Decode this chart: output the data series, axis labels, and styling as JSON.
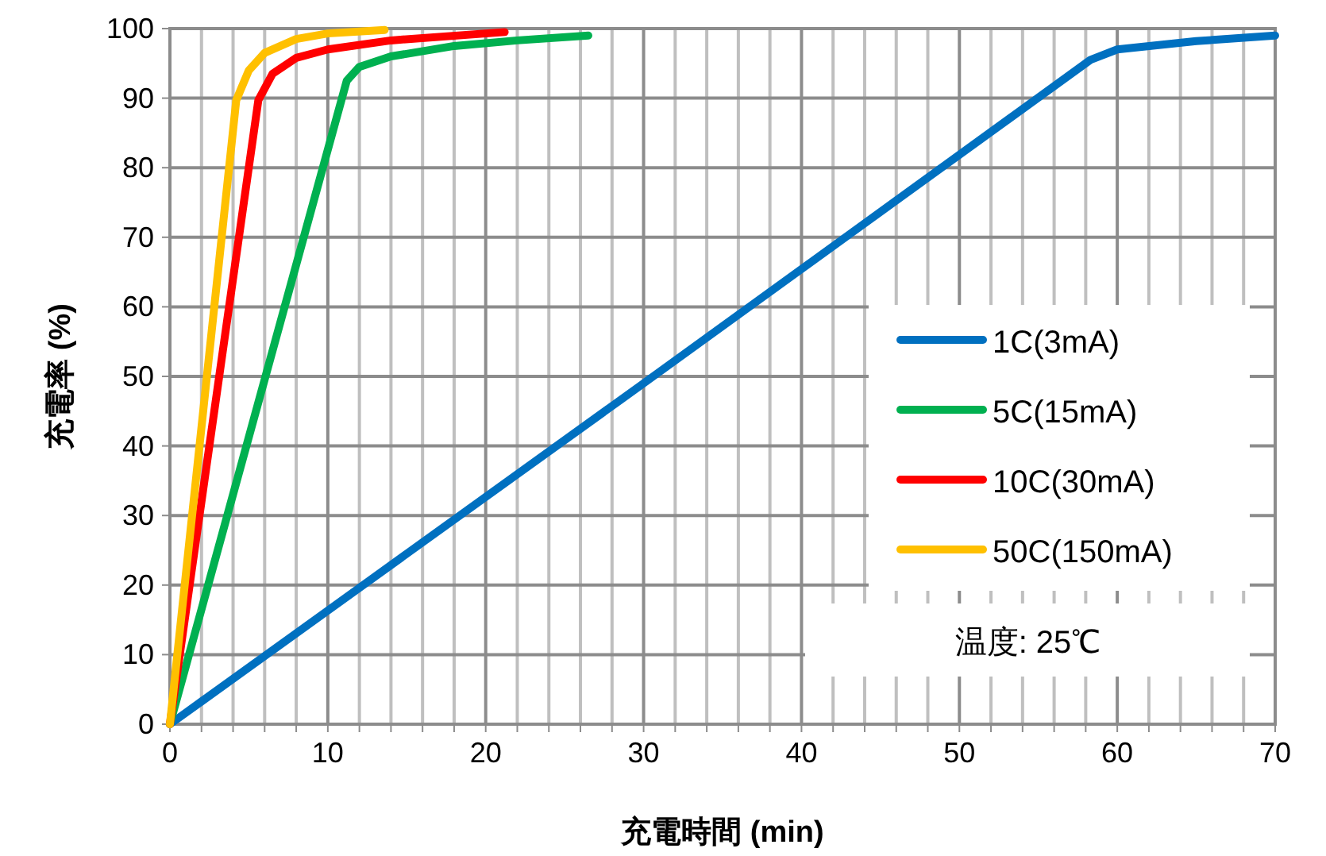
{
  "chart_data": {
    "type": "line",
    "xlabel": "充電時間 (min)",
    "ylabel": "充電率 (%)",
    "xlim": [
      0,
      70
    ],
    "ylim": [
      0,
      100
    ],
    "xticks": [
      0,
      {
        "value": 2,
        "label": null
      },
      {
        "value": 4,
        "label": null
      },
      {
        "value": 6,
        "label": null
      },
      {
        "value": 8,
        "label": null
      },
      10,
      {
        "value": 12,
        "label": null
      },
      {
        "value": 14,
        "label": null
      },
      {
        "value": 16,
        "label": null
      },
      {
        "value": 18,
        "label": null
      },
      20,
      {
        "value": 22,
        "label": null
      },
      {
        "value": 24,
        "label": null
      },
      {
        "value": 26,
        "label": null
      },
      {
        "value": 28,
        "label": null
      },
      30,
      {
        "value": 32,
        "label": null
      },
      {
        "value": 34,
        "label": null
      },
      {
        "value": 36,
        "label": null
      },
      {
        "value": 38,
        "label": null
      },
      40,
      {
        "value": 42,
        "label": null
      },
      {
        "value": 44,
        "label": null
      },
      {
        "value": 46,
        "label": null
      },
      {
        "value": 48,
        "label": null
      },
      50,
      {
        "value": 52,
        "label": null
      },
      {
        "value": 54,
        "label": null
      },
      {
        "value": 56,
        "label": null
      },
      {
        "value": 58,
        "label": null
      },
      60,
      {
        "value": 62,
        "label": null
      },
      {
        "value": 64,
        "label": null
      },
      {
        "value": 66,
        "label": null
      },
      {
        "value": 68,
        "label": null
      },
      70
    ],
    "yticks": [
      0,
      10,
      20,
      30,
      40,
      50,
      60,
      70,
      80,
      90,
      100
    ],
    "grid": true,
    "legend": "right",
    "marker": "none",
    "line_style": "solid",
    "series": [
      {
        "name": "1C(3mA)",
        "color": "#0070c0",
        "x": [
          0,
          30,
          58.3,
          60,
          65,
          70
        ],
        "values": [
          0,
          49,
          95.5,
          97,
          98.2,
          99
        ]
      },
      {
        "name": "5C(15mA)",
        "color": "#00b050",
        "x": [
          0,
          11.2,
          12,
          14,
          18,
          22,
          26.5
        ],
        "values": [
          0,
          92.5,
          94.5,
          96,
          97.5,
          98.3,
          99
        ]
      },
      {
        "name": "10C(30mA)",
        "color": "#ff0000",
        "x": [
          0,
          5.6,
          6.5,
          8,
          10,
          14,
          21.2
        ],
        "values": [
          0,
          89.7,
          93.5,
          95.8,
          97,
          98.3,
          99.5
        ]
      },
      {
        "name": "50C(150mA)",
        "color": "#ffc000",
        "x": [
          0,
          4.2,
          5,
          6,
          8,
          10,
          13.6
        ],
        "values": [
          0,
          89.7,
          94,
          96.5,
          98.5,
          99.3,
          99.8
        ]
      }
    ],
    "annotations": [
      "温度: 25℃"
    ]
  }
}
